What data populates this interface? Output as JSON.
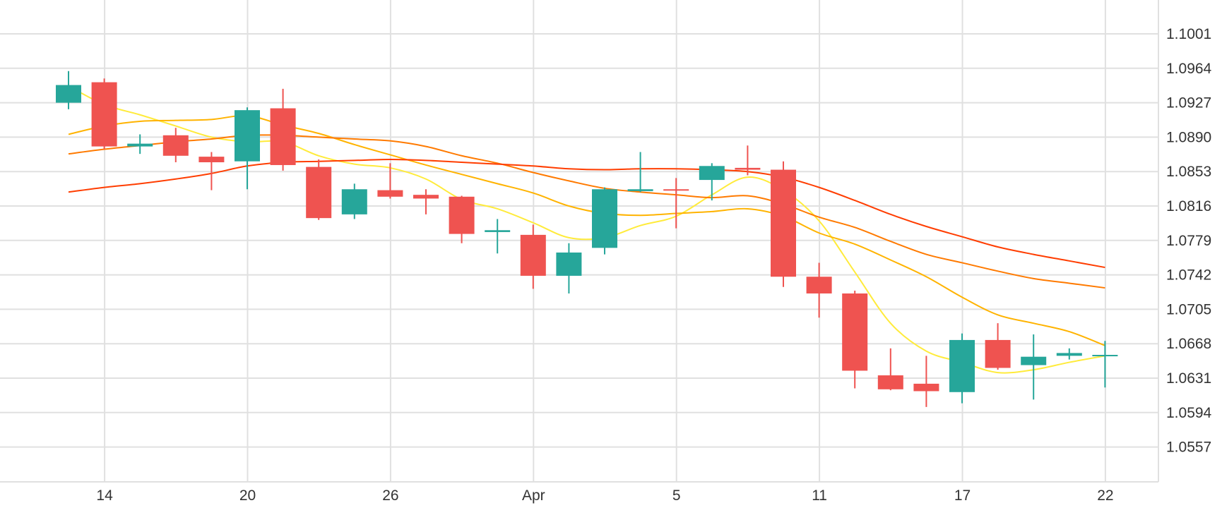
{
  "chart_data": {
    "type": "candlestick",
    "title": "",
    "xlabel": "",
    "ylabel": "",
    "ylim": [
      1.052,
      1.1038
    ],
    "x_tick_labels": [
      {
        "label": "14",
        "index": 1
      },
      {
        "label": "20",
        "index": 5
      },
      {
        "label": "26",
        "index": 9
      },
      {
        "label": "Apr",
        "index": 13
      },
      {
        "label": "5",
        "index": 17
      },
      {
        "label": "11",
        "index": 21
      },
      {
        "label": "17",
        "index": 25
      },
      {
        "label": "22",
        "index": 29
      }
    ],
    "y_tick_labels": [
      "1.1001",
      "1.0964",
      "1.0927",
      "1.0890",
      "1.0853",
      "1.0816",
      "1.0779",
      "1.0742",
      "1.0705",
      "1.0668",
      "1.0631",
      "1.0594",
      "1.0557"
    ],
    "grid": true,
    "colors": {
      "up": "#26a69a",
      "down": "#ef5350",
      "grid": "#e0e0e0",
      "ma_1": "#ffeb3b",
      "ma_2": "#ffb300",
      "ma_3": "#ff7a00",
      "ma_4": "#ff3d00"
    },
    "candles": [
      {
        "o": 1.0927,
        "h": 1.0961,
        "l": 1.092,
        "c": 1.0946
      },
      {
        "o": 1.0949,
        "h": 1.0953,
        "l": 1.0877,
        "c": 1.088
      },
      {
        "o": 1.088,
        "h": 1.0893,
        "l": 1.0872,
        "c": 1.0883
      },
      {
        "o": 1.0892,
        "h": 1.09,
        "l": 1.0863,
        "c": 1.087
      },
      {
        "o": 1.0869,
        "h": 1.0874,
        "l": 1.0833,
        "c": 1.0863
      },
      {
        "o": 1.0864,
        "h": 1.0922,
        "l": 1.0834,
        "c": 1.0919
      },
      {
        "o": 1.0921,
        "h": 1.0942,
        "l": 1.0854,
        "c": 1.086
      },
      {
        "o": 1.0858,
        "h": 1.0866,
        "l": 1.0801,
        "c": 1.0803
      },
      {
        "o": 1.0807,
        "h": 1.084,
        "l": 1.0802,
        "c": 1.0834
      },
      {
        "o": 1.0833,
        "h": 1.0862,
        "l": 1.0824,
        "c": 1.0826
      },
      {
        "o": 1.0828,
        "h": 1.0834,
        "l": 1.0807,
        "c": 1.0824
      },
      {
        "o": 1.0826,
        "h": 1.0827,
        "l": 1.0776,
        "c": 1.0786
      },
      {
        "o": 1.0788,
        "h": 1.0802,
        "l": 1.0765,
        "c": 1.079
      },
      {
        "o": 1.0785,
        "h": 1.0796,
        "l": 1.0727,
        "c": 1.0741
      },
      {
        "o": 1.0741,
        "h": 1.0776,
        "l": 1.0722,
        "c": 1.0766
      },
      {
        "o": 1.0771,
        "h": 1.0836,
        "l": 1.0764,
        "c": 1.0834
      },
      {
        "o": 1.0832,
        "h": 1.0874,
        "l": 1.0831,
        "c": 1.0834
      },
      {
        "o": 1.0834,
        "h": 1.0846,
        "l": 1.0792,
        "c": 1.0833
      },
      {
        "o": 1.0844,
        "h": 1.0862,
        "l": 1.0822,
        "c": 1.0859
      },
      {
        "o": 1.0857,
        "h": 1.0881,
        "l": 1.0849,
        "c": 1.0855
      },
      {
        "o": 1.0855,
        "h": 1.0864,
        "l": 1.0729,
        "c": 1.074
      },
      {
        "o": 1.074,
        "h": 1.0755,
        "l": 1.0696,
        "c": 1.0722
      },
      {
        "o": 1.0722,
        "h": 1.0725,
        "l": 1.062,
        "c": 1.0639
      },
      {
        "o": 1.0634,
        "h": 1.0663,
        "l": 1.0618,
        "c": 1.0619
      },
      {
        "o": 1.0625,
        "h": 1.0655,
        "l": 1.06,
        "c": 1.0617
      },
      {
        "o": 1.0616,
        "h": 1.0679,
        "l": 1.0604,
        "c": 1.0672
      },
      {
        "o": 1.0672,
        "h": 1.069,
        "l": 1.064,
        "c": 1.0642
      },
      {
        "o": 1.0645,
        "h": 1.0678,
        "l": 1.0608,
        "c": 1.0654
      },
      {
        "o": 1.0655,
        "h": 1.0663,
        "l": 1.0651,
        "c": 1.0658
      },
      {
        "o": 1.0656,
        "h": 1.0671,
        "l": 1.0621,
        "c": 1.0656
      }
    ],
    "series": [
      {
        "values": [
          1.0945,
          1.0925,
          1.0914,
          1.0902,
          1.089,
          1.0885,
          1.0885,
          1.087,
          1.0861,
          1.0857,
          1.0845,
          1.0823,
          1.0813,
          1.0798,
          1.0782,
          1.0782,
          1.0795,
          1.0805,
          1.0828,
          1.0847,
          1.0833,
          1.08,
          1.0745,
          1.069,
          1.066,
          1.0648,
          1.0637,
          1.064,
          1.0648,
          1.0655
        ]
      },
      {
        "values": [
          1.0893,
          1.0902,
          1.0907,
          1.0908,
          1.0909,
          1.0913,
          1.0903,
          1.0894,
          1.0882,
          1.0871,
          1.086,
          1.085,
          1.084,
          1.083,
          1.0816,
          1.0808,
          1.0806,
          1.0808,
          1.081,
          1.0813,
          1.0805,
          1.0787,
          1.0775,
          1.0758,
          1.074,
          1.0718,
          1.0699,
          1.069,
          1.0681,
          1.0666
        ]
      },
      {
        "values": [
          1.0872,
          1.0877,
          1.0881,
          1.0885,
          1.0888,
          1.0892,
          1.0892,
          1.089,
          1.0888,
          1.0886,
          1.088,
          1.087,
          1.0862,
          1.0852,
          1.0843,
          1.0835,
          1.0831,
          1.0828,
          1.0825,
          1.0827,
          1.0818,
          1.0804,
          1.0793,
          1.0778,
          1.0764,
          1.0755,
          1.0746,
          1.0738,
          1.0733,
          1.0728
        ]
      },
      {
        "values": [
          1.0831,
          1.0836,
          1.084,
          1.0845,
          1.0851,
          1.0859,
          1.0863,
          1.0864,
          1.0865,
          1.0866,
          1.0865,
          1.0863,
          1.0861,
          1.0859,
          1.0856,
          1.0855,
          1.0856,
          1.0856,
          1.0855,
          1.0853,
          1.0847,
          1.0836,
          1.0822,
          1.0807,
          1.0794,
          1.0783,
          1.0772,
          1.0764,
          1.0757,
          1.075
        ]
      }
    ]
  }
}
